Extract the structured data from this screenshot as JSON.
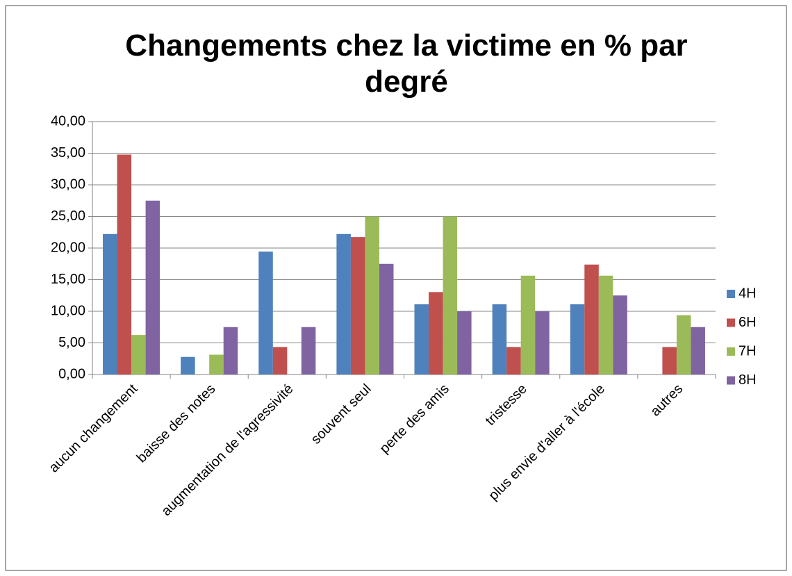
{
  "chart_data": {
    "type": "bar",
    "title": "Changements chez la victime en % par degré",
    "categories": [
      "aucun changement",
      "baisse des notes",
      "augmentation de l'agressivité",
      "souvent seul",
      "perte des amis",
      "tristesse",
      "plus envie d'aller à l'école",
      "autres"
    ],
    "series": [
      {
        "name": "4H",
        "color": "#4f81bd",
        "values": [
          22.22,
          2.78,
          19.44,
          22.22,
          11.11,
          11.11,
          11.11,
          0
        ]
      },
      {
        "name": "6H",
        "color": "#c0504d",
        "values": [
          34.78,
          0,
          4.35,
          21.74,
          13.04,
          4.35,
          17.39,
          4.35
        ]
      },
      {
        "name": "7H",
        "color": "#9bbb59",
        "values": [
          6.25,
          3.13,
          0,
          25,
          25,
          15.63,
          15.63,
          9.38
        ]
      },
      {
        "name": "8H",
        "color": "#8064a2",
        "values": [
          27.5,
          7.5,
          7.5,
          17.5,
          10,
          10,
          12.5,
          7.5
        ]
      }
    ],
    "ylim": [
      0,
      40
    ],
    "yticks": [
      {
        "value": 0,
        "label": "0,00"
      },
      {
        "value": 5,
        "label": "5,00"
      },
      {
        "value": 10,
        "label": "10,00"
      },
      {
        "value": 15,
        "label": "15,00"
      },
      {
        "value": 20,
        "label": "20,00"
      },
      {
        "value": 25,
        "label": "25,00"
      },
      {
        "value": 30,
        "label": "30,00"
      },
      {
        "value": 35,
        "label": "35,00"
      },
      {
        "value": 40,
        "label": "40,00"
      }
    ],
    "grid": true,
    "legend": "right"
  }
}
